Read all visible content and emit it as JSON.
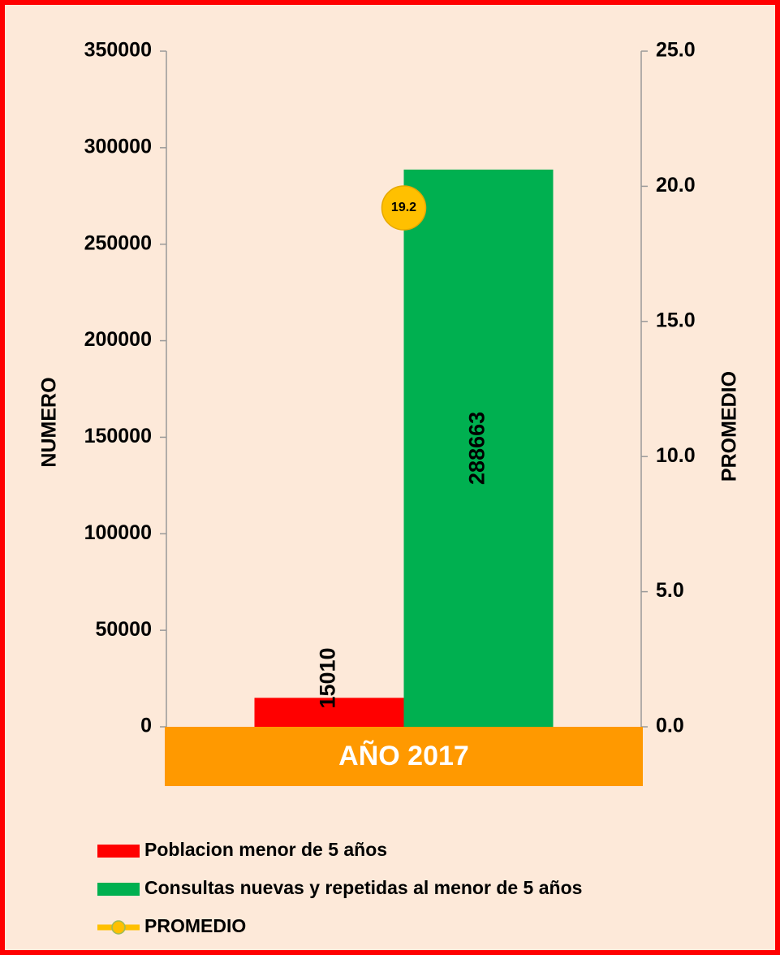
{
  "chart_data": {
    "type": "bar",
    "categories": [
      "AÑO 2017"
    ],
    "series": [
      {
        "name": "Poblacion menor de 5 años",
        "color": "#ff0000",
        "values": [
          15010
        ]
      },
      {
        "name": "Consultas nuevas y repetidas al menor de 5 años",
        "color": "#00b050",
        "values": [
          288663
        ]
      },
      {
        "name": "PROMEDIO",
        "color": "#ffc000",
        "values": [
          19.2
        ],
        "axis": "y2",
        "type": "line"
      }
    ],
    "ylabel": "NUMERO",
    "y2label": "PROMEDIO",
    "ylim": [
      0,
      350000
    ],
    "yticks": [
      0,
      50000,
      100000,
      150000,
      200000,
      250000,
      300000,
      350000
    ],
    "y2lim": [
      0,
      25
    ],
    "y2ticks": [
      {
        "value": 0,
        "label": "0.0"
      },
      {
        "value": 5,
        "label": "5.0"
      },
      {
        "value": 10,
        "label": "10.0"
      },
      {
        "value": 15,
        "label": "15.0"
      },
      {
        "value": 20,
        "label": "20.0"
      },
      {
        "value": 25,
        "label": "25.0"
      }
    ],
    "category_band_color": "#ff9900",
    "legend": "bottom"
  }
}
